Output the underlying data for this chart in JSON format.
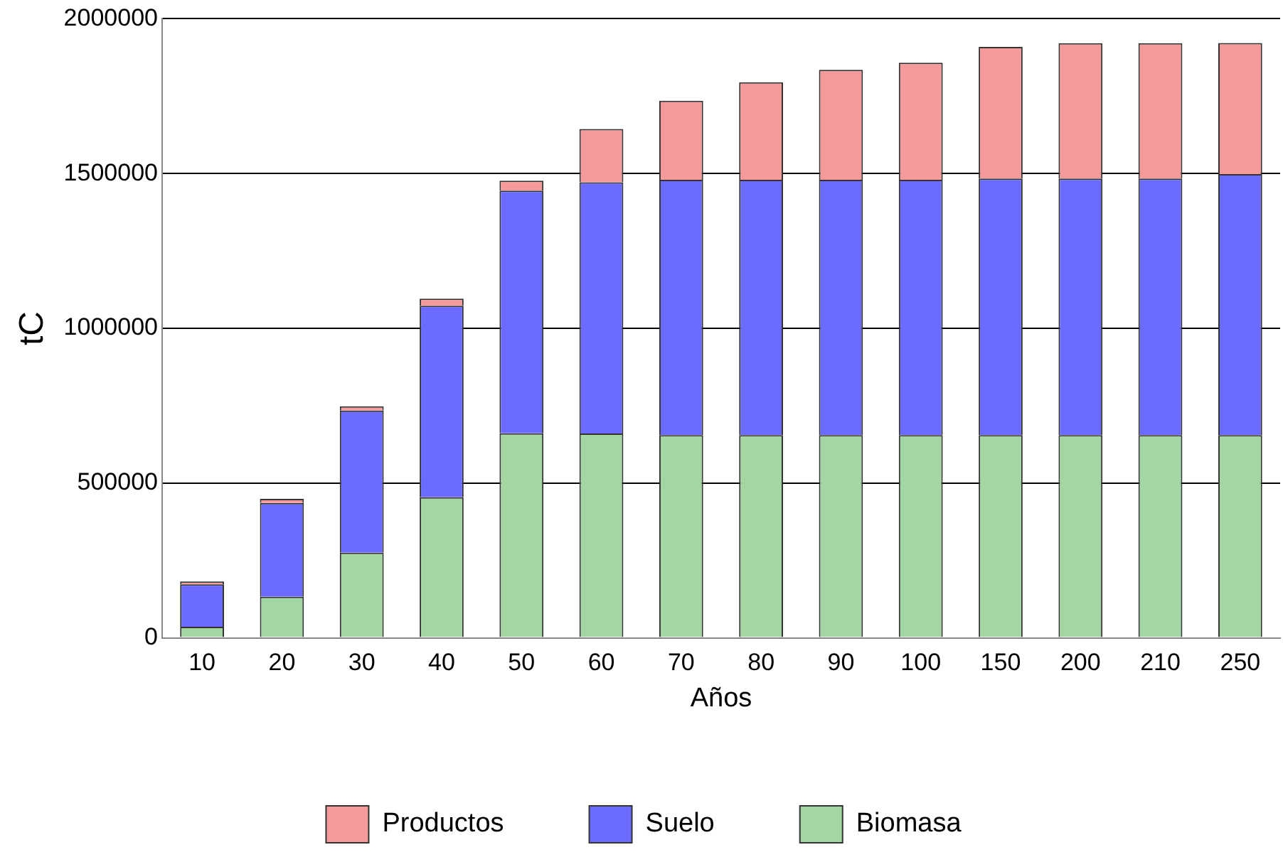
{
  "chart_data": {
    "type": "bar",
    "stacked": true,
    "xlabel": "Años",
    "ylabel": "tC",
    "categories": [
      "10",
      "20",
      "30",
      "40",
      "50",
      "60",
      "70",
      "80",
      "90",
      "100",
      "150",
      "200",
      "210",
      "250"
    ],
    "series": [
      {
        "name": "Biomasa",
        "color": "#a3d6a3",
        "values": [
          36000,
          133000,
          275000,
          454000,
          661000,
          660000,
          655000,
          655000,
          655000,
          655000,
          655000,
          655000,
          655000,
          655000
        ]
      },
      {
        "name": "Suelo",
        "color": "#6b6bff",
        "values": [
          137000,
          303000,
          459000,
          619000,
          784000,
          812000,
          825000,
          825000,
          825000,
          825000,
          829000,
          829000,
          829000,
          843000
        ]
      },
      {
        "name": "Productos",
        "color": "#f59a9a",
        "values": [
          9000,
          13000,
          14000,
          23000,
          32000,
          172000,
          255000,
          315000,
          355000,
          378000,
          425000,
          437000,
          437000,
          424000
        ]
      }
    ],
    "ylim": [
      0,
      2000000
    ],
    "yticks": [
      0,
      500000,
      1000000,
      1500000,
      2000000
    ],
    "grid": "y",
    "legend": "bottom"
  }
}
